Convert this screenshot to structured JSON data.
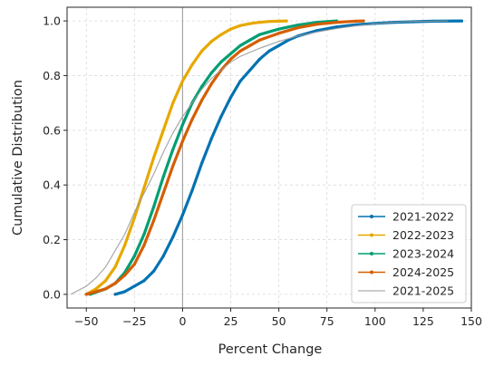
{
  "chart_data": {
    "type": "line",
    "title": "",
    "xlabel": "Percent Change",
    "ylabel": "Cumulative Distribution",
    "xlim": [
      -60,
      150
    ],
    "ylim": [
      -0.05,
      1.05
    ],
    "xticks": [
      -50,
      -25,
      0,
      25,
      50,
      75,
      100,
      125,
      150
    ],
    "xtick_labels": [
      "−50",
      "−25",
      "0",
      "25",
      "50",
      "75",
      "100",
      "125",
      "150"
    ],
    "yticks": [
      0.0,
      0.2,
      0.4,
      0.6,
      0.8,
      1.0
    ],
    "ytick_labels": [
      "0.0",
      "0.2",
      "0.4",
      "0.6",
      "0.8",
      "1.0"
    ],
    "grid": true,
    "reference_line_x": 0,
    "legend_position": "lower-right",
    "series": [
      {
        "name": "2021-2022",
        "color": "#0072B2",
        "style": "markers",
        "x": [
          -35,
          -30,
          -25,
          -20,
          -15,
          -10,
          -5,
          0,
          5,
          10,
          15,
          20,
          25,
          30,
          35,
          40,
          45,
          50,
          55,
          60,
          70,
          80,
          90,
          100,
          110,
          120,
          130,
          145
        ],
        "y": [
          0.0,
          0.01,
          0.03,
          0.05,
          0.085,
          0.14,
          0.21,
          0.29,
          0.38,
          0.48,
          0.57,
          0.65,
          0.72,
          0.78,
          0.82,
          0.86,
          0.89,
          0.91,
          0.93,
          0.945,
          0.965,
          0.978,
          0.986,
          0.991,
          0.995,
          0.997,
          0.999,
          1.0
        ]
      },
      {
        "name": "2022-2023",
        "color": "#E6A800",
        "style": "markers",
        "x": [
          -50,
          -45,
          -40,
          -35,
          -30,
          -25,
          -20,
          -15,
          -10,
          -5,
          0,
          5,
          10,
          15,
          20,
          25,
          30,
          35,
          40,
          45,
          50,
          54
        ],
        "y": [
          0.0,
          0.02,
          0.05,
          0.1,
          0.18,
          0.28,
          0.39,
          0.5,
          0.6,
          0.7,
          0.78,
          0.84,
          0.89,
          0.925,
          0.95,
          0.97,
          0.983,
          0.99,
          0.995,
          0.998,
          0.999,
          1.0
        ]
      },
      {
        "name": "2023-2024",
        "color": "#009E73",
        "style": "markers",
        "x": [
          -48,
          -40,
          -35,
          -30,
          -25,
          -20,
          -15,
          -10,
          -5,
          0,
          5,
          10,
          15,
          20,
          25,
          30,
          35,
          40,
          50,
          60,
          70,
          80
        ],
        "y": [
          0.0,
          0.02,
          0.04,
          0.08,
          0.14,
          0.22,
          0.32,
          0.43,
          0.53,
          0.62,
          0.7,
          0.76,
          0.81,
          0.85,
          0.88,
          0.91,
          0.93,
          0.95,
          0.97,
          0.985,
          0.995,
          1.0
        ]
      },
      {
        "name": "2024-2025",
        "color": "#D55E00",
        "style": "markers",
        "x": [
          -50,
          -40,
          -35,
          -30,
          -25,
          -20,
          -15,
          -10,
          -5,
          0,
          5,
          10,
          15,
          20,
          25,
          30,
          35,
          40,
          50,
          60,
          70,
          80,
          90,
          94
        ],
        "y": [
          0.0,
          0.02,
          0.04,
          0.07,
          0.11,
          0.18,
          0.27,
          0.37,
          0.47,
          0.56,
          0.64,
          0.71,
          0.77,
          0.82,
          0.86,
          0.89,
          0.91,
          0.93,
          0.955,
          0.975,
          0.988,
          0.995,
          0.999,
          1.0
        ]
      },
      {
        "name": "2021-2025",
        "color": "#999999",
        "style": "line",
        "x": [
          -58,
          -50,
          -45,
          -40,
          -35,
          -30,
          -25,
          -20,
          -15,
          -10,
          -5,
          0,
          5,
          10,
          15,
          20,
          25,
          30,
          40,
          50,
          60,
          70,
          80,
          90,
          100,
          110,
          120,
          130,
          138
        ],
        "y": [
          0.0,
          0.03,
          0.06,
          0.1,
          0.16,
          0.22,
          0.3,
          0.37,
          0.44,
          0.52,
          0.59,
          0.65,
          0.7,
          0.75,
          0.79,
          0.82,
          0.85,
          0.87,
          0.9,
          0.925,
          0.945,
          0.96,
          0.972,
          0.982,
          0.99,
          0.995,
          0.998,
          0.999,
          1.0
        ]
      }
    ]
  }
}
